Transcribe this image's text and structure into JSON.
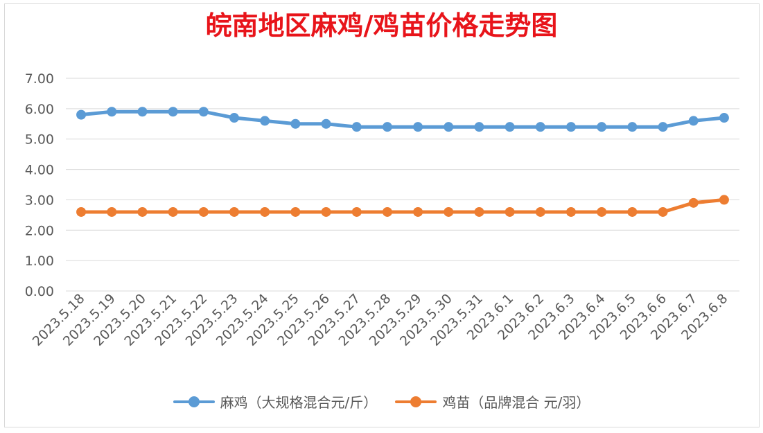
{
  "chart_data": {
    "type": "line",
    "title": "皖南地区麻鸡/鸡苗价格走势图",
    "categories": [
      "2023.5.18",
      "2023.5.19",
      "2023.5.20",
      "2023.5.21",
      "2023.5.22",
      "2023.5.23",
      "2023.5.24",
      "2023.5.25",
      "2023.5.26",
      "2023.5.27",
      "2023.5.28",
      "2023.5.29",
      "2023.5.30",
      "2023.5.31",
      "2023.6.1",
      "2023.6.2",
      "2023.6.3",
      "2023.6.4",
      "2023.6.5",
      "2023.6.6",
      "2023.6.7",
      "2023.6.8"
    ],
    "yticks": [
      "0.00",
      "1.00",
      "2.00",
      "3.00",
      "4.00",
      "5.00",
      "6.00",
      "7.00"
    ],
    "ylim": [
      0,
      7
    ],
    "grid": true,
    "legend_position": "bottom",
    "series": [
      {
        "name": "麻鸡（大规格混合元/斤）",
        "color": "#5b9bd5",
        "values": [
          5.8,
          5.9,
          5.9,
          5.9,
          5.9,
          5.7,
          5.6,
          5.5,
          5.5,
          5.4,
          5.4,
          5.4,
          5.4,
          5.4,
          5.4,
          5.4,
          5.4,
          5.4,
          5.4,
          5.4,
          5.6,
          5.7
        ]
      },
      {
        "name": "鸡苗（品牌混合 元/羽）",
        "color": "#ed7d31",
        "values": [
          2.6,
          2.6,
          2.6,
          2.6,
          2.6,
          2.6,
          2.6,
          2.6,
          2.6,
          2.6,
          2.6,
          2.6,
          2.6,
          2.6,
          2.6,
          2.6,
          2.6,
          2.6,
          2.6,
          2.6,
          2.9,
          3.0
        ]
      }
    ]
  }
}
